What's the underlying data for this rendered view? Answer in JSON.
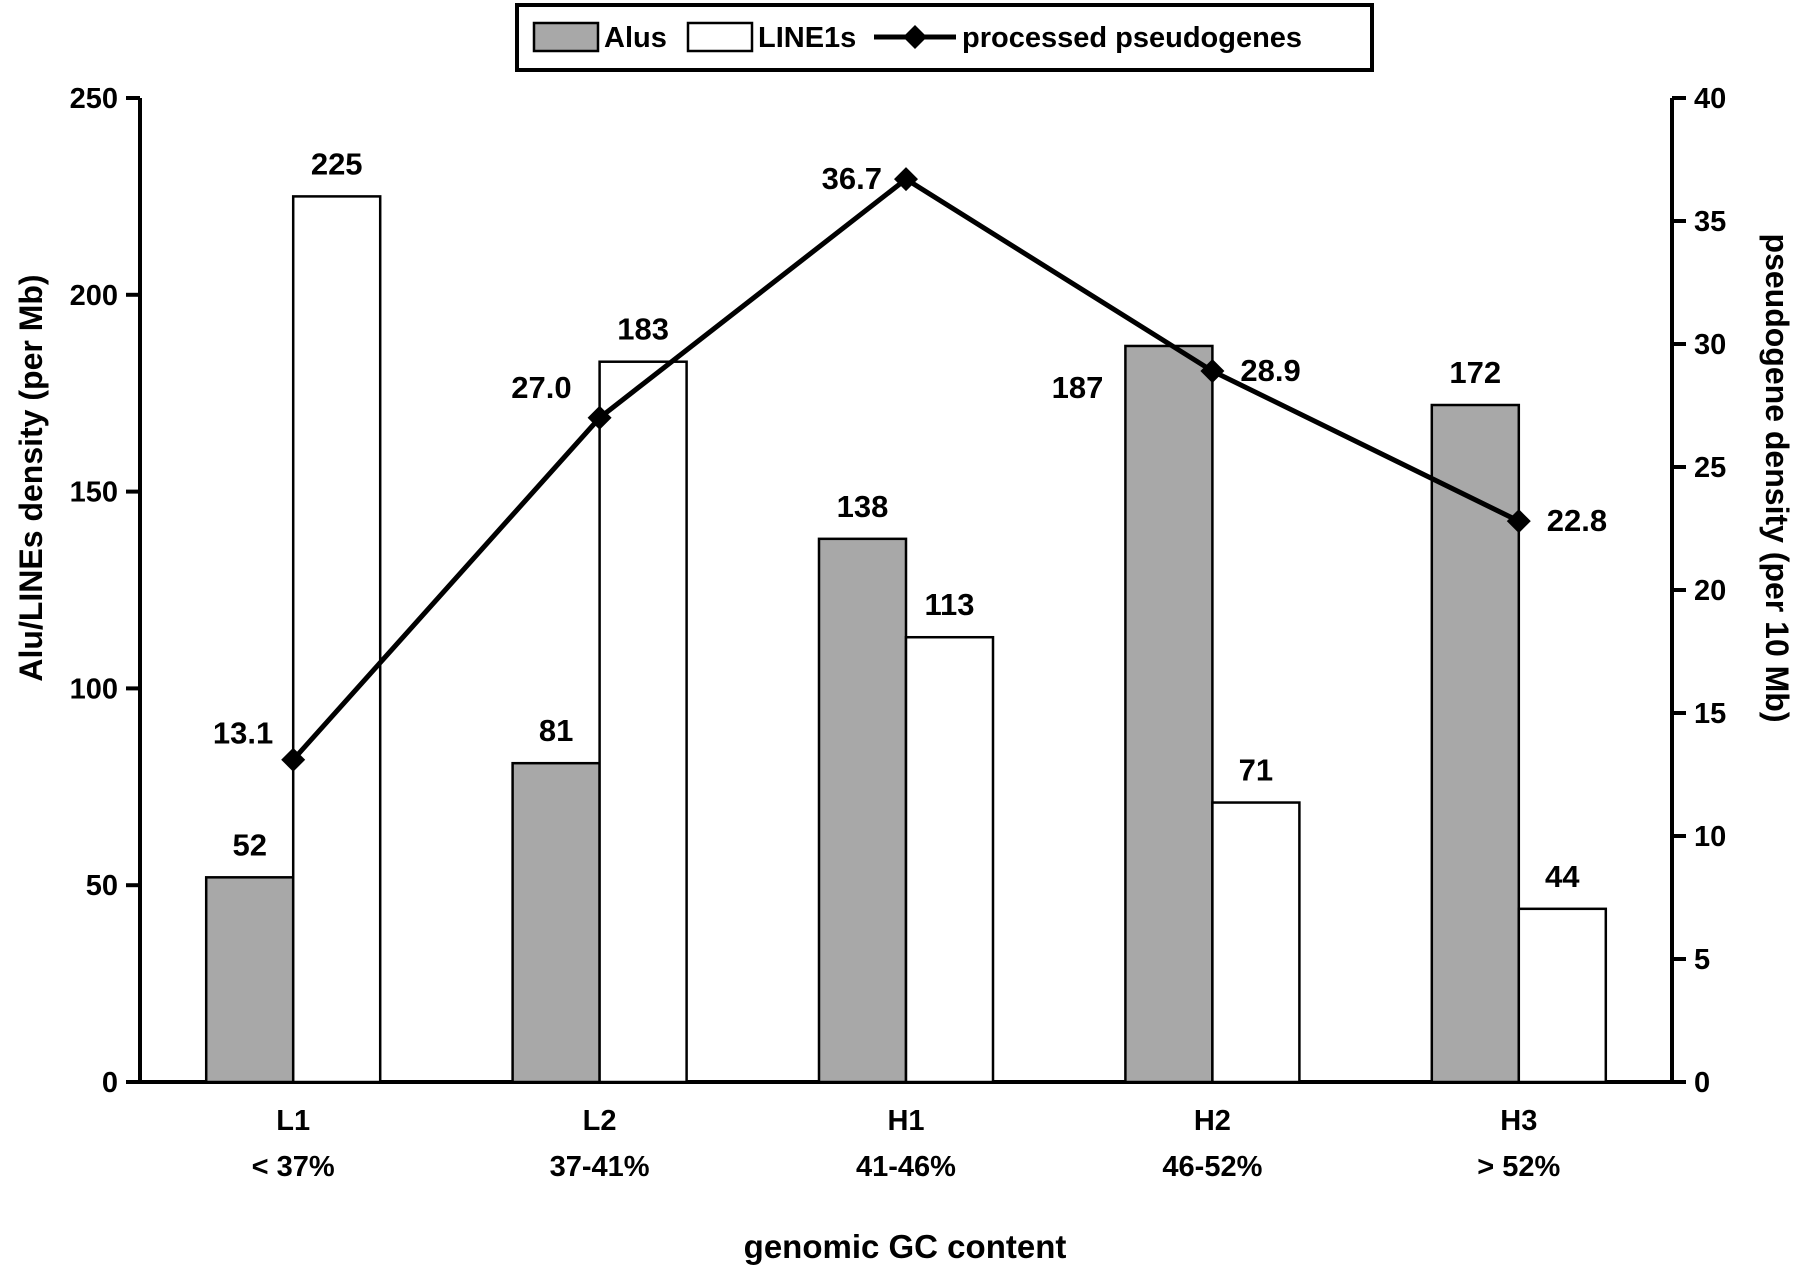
{
  "chart_data": {
    "type": "bar",
    "categories": [
      {
        "name": "L1",
        "range": "< 37%"
      },
      {
        "name": "L2",
        "range": "37-41%"
      },
      {
        "name": "H1",
        "range": "41-46%"
      },
      {
        "name": "H2",
        "range": "46-52%"
      },
      {
        "name": "H3",
        "range": "> 52%"
      }
    ],
    "series": [
      {
        "name": "Alus",
        "type": "bar",
        "axis": "left",
        "color": "#a8a8a8",
        "values": [
          52,
          81,
          138,
          187,
          172
        ],
        "labels": [
          "52",
          "81",
          "138",
          "187",
          "172"
        ]
      },
      {
        "name": "LINE1s",
        "type": "bar",
        "axis": "left",
        "color": "#ffffff",
        "values": [
          225,
          183,
          113,
          71,
          44
        ],
        "labels": [
          "225",
          "183",
          "113",
          "71",
          "44"
        ]
      },
      {
        "name": "processed pseudogenes",
        "type": "line",
        "axis": "right",
        "color": "#000000",
        "values": [
          13.1,
          27.0,
          36.7,
          28.9,
          22.8
        ],
        "labels": [
          "13.1",
          "27.0",
          "36.7",
          "28.9",
          "22.8"
        ]
      }
    ],
    "xlabel": "genomic GC content",
    "ylabel_left": "Alu/LINEs density (per Mb)",
    "ylabel_right": "pseudogene density (per 10 Mb)",
    "ylim_left": [
      0,
      250
    ],
    "ylim_right": [
      0,
      40
    ],
    "yticks_left": [
      "0",
      "50",
      "100",
      "150",
      "200",
      "250"
    ],
    "yticks_right": [
      "0",
      "5",
      "10",
      "15",
      "20",
      "25",
      "30",
      "35",
      "40"
    ],
    "legend_position": "top-center",
    "grid": false
  }
}
